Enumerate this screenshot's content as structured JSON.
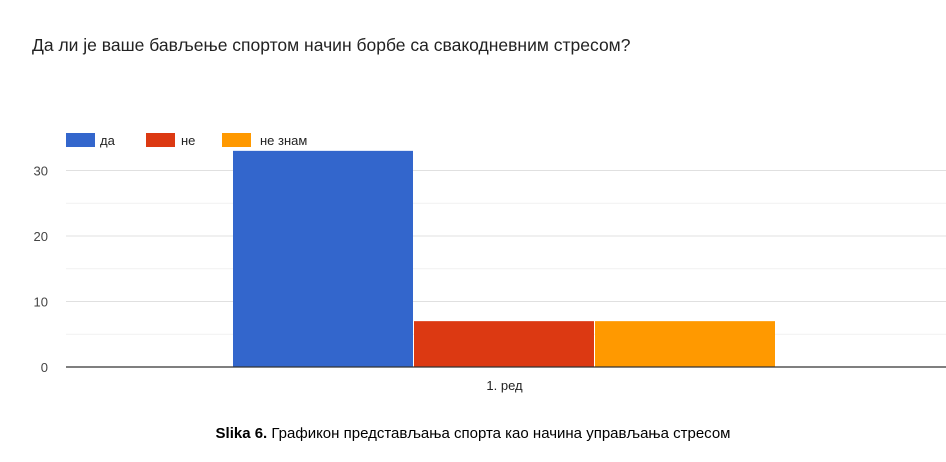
{
  "chart_data": {
    "type": "bar",
    "title": "Да ли је ваше бављење спортом начин борбе са свакодневним стресом?",
    "categories": [
      "1. ред"
    ],
    "series": [
      {
        "name": "да",
        "values": [
          33
        ],
        "color": "#3366cc"
      },
      {
        "name": "не",
        "values": [
          7
        ],
        "color": "#dc3912"
      },
      {
        "name": "не знам",
        "values": [
          7
        ],
        "color": "#ff9900"
      }
    ],
    "ylim": [
      0,
      35
    ],
    "y_ticks": [
      0,
      10,
      20,
      30
    ],
    "grid": true,
    "legend": "top-left"
  },
  "caption": {
    "label": "Slika 6.",
    "text": "Графикон представљања спорта као начина управљања стресом"
  }
}
